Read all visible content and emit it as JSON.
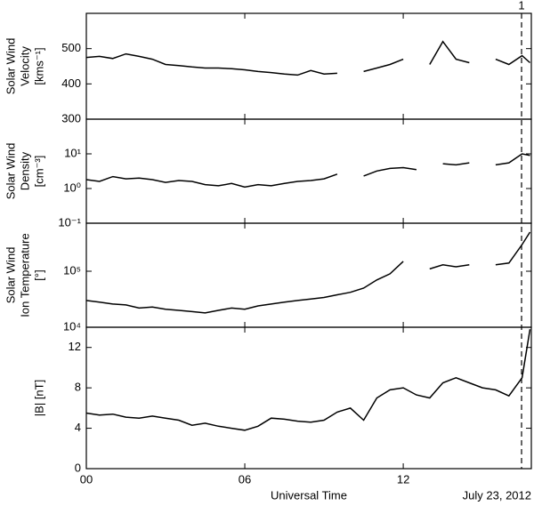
{
  "chart_data": [
    {
      "type": "line",
      "ylabel": [
        "Solar Wind",
        "Velocity",
        "[kms⁻¹]"
      ],
      "log_y": false,
      "xlim": [
        0,
        16.85
      ],
      "ylim": [
        300,
        600
      ],
      "yticks": [
        300,
        400,
        500
      ],
      "event_line": {
        "x": 16.48,
        "label": "1"
      },
      "x": [
        0,
        0.5,
        1,
        1.5,
        2,
        2.5,
        3,
        3.5,
        4,
        4.5,
        5,
        5.5,
        6,
        6.5,
        7,
        7.5,
        8,
        8.5,
        9,
        9.5,
        10,
        10.5,
        11,
        11.5,
        12,
        12.5,
        13,
        13.5,
        14,
        14.5,
        15,
        15.5,
        16,
        16.5,
        16.8
      ],
      "series": [
        {
          "color": "#000000",
          "values": [
            475,
            478,
            472,
            485,
            478,
            470,
            455,
            452,
            448,
            445,
            445,
            443,
            440,
            435,
            432,
            428,
            425,
            438,
            428,
            430,
            null,
            435,
            445,
            455,
            470,
            null,
            455,
            520,
            470,
            460,
            null,
            470,
            455,
            480,
            460
          ]
        }
      ]
    },
    {
      "type": "line",
      "ylabel": [
        "Solar Wind",
        "Density",
        "[cm⁻³]"
      ],
      "log_y": true,
      "xlim": [
        0,
        16.85
      ],
      "ylim": [
        0.1,
        100
      ],
      "yticks": [
        {
          "value": 0.1,
          "label": "10⁻¹"
        },
        {
          "value": 1,
          "label": "10⁰"
        },
        {
          "value": 10,
          "label": "10¹"
        }
      ],
      "x": [
        0,
        0.5,
        1,
        1.5,
        2,
        2.5,
        3,
        3.5,
        4,
        4.5,
        5,
        5.5,
        6,
        6.5,
        7,
        7.5,
        8,
        8.5,
        9,
        9.5,
        10,
        10.5,
        11,
        11.5,
        12,
        12.5,
        13,
        13.5,
        14,
        14.5,
        15,
        15.5,
        16,
        16.5,
        16.8
      ],
      "series": [
        {
          "color": "#000000",
          "values": [
            1.8,
            1.6,
            2.2,
            1.9,
            2.0,
            1.8,
            1.5,
            1.7,
            1.6,
            1.3,
            1.2,
            1.4,
            1.1,
            1.3,
            1.2,
            1.4,
            1.6,
            1.7,
            1.9,
            2.6,
            null,
            2.3,
            3.2,
            3.8,
            4.0,
            3.5,
            null,
            5.2,
            4.8,
            5.5,
            null,
            4.8,
            5.5,
            10,
            9
          ]
        }
      ]
    },
    {
      "type": "line",
      "ylabel": [
        "Solar Wind",
        "Ion Temperature",
        "[°]"
      ],
      "log_y": true,
      "xlim": [
        0,
        16.85
      ],
      "ylim": [
        10000,
        720000
      ],
      "yticks": [
        {
          "value": 10000,
          "label": "10⁴"
        },
        {
          "value": 100000,
          "label": "10⁵"
        }
      ],
      "x": [
        0,
        0.5,
        1,
        1.5,
        2,
        2.5,
        3,
        3.5,
        4,
        4.5,
        5,
        5.5,
        6,
        6.5,
        7,
        7.5,
        8,
        8.5,
        9,
        9.5,
        10,
        10.5,
        11,
        11.5,
        12,
        12.5,
        13,
        13.5,
        14,
        14.5,
        15,
        15.5,
        16,
        16.5,
        16.8
      ],
      "series": [
        {
          "color": "#000000",
          "values": [
            30000,
            28000,
            26000,
            25000,
            22000,
            23000,
            21000,
            20000,
            19000,
            18000,
            20000,
            22000,
            21000,
            24000,
            26000,
            28000,
            30000,
            32000,
            34000,
            38000,
            42000,
            50000,
            70000,
            90000,
            150000,
            null,
            110000,
            130000,
            120000,
            130000,
            null,
            130000,
            140000,
            300000,
            500000
          ]
        }
      ]
    },
    {
      "type": "line",
      "ylabel": [
        "|B| [nT]"
      ],
      "log_y": false,
      "xlim": [
        0,
        16.85
      ],
      "ylim": [
        0,
        14
      ],
      "yticks": [
        0,
        4,
        8,
        12
      ],
      "xticks": [
        {
          "value": 0,
          "label": "00"
        },
        {
          "value": 6,
          "label": "06"
        },
        {
          "value": 12,
          "label": "12"
        }
      ],
      "xlabel": "Universal Time",
      "annotation": "July 23, 2012",
      "x": [
        0,
        0.5,
        1,
        1.5,
        2,
        2.5,
        3,
        3.5,
        4,
        4.5,
        5,
        5.5,
        6,
        6.5,
        7,
        7.5,
        8,
        8.5,
        9,
        9.5,
        10,
        10.5,
        11,
        11.5,
        12,
        12.5,
        13,
        13.5,
        14,
        14.5,
        15,
        15.5,
        16,
        16.5,
        16.8
      ],
      "series": [
        {
          "color": "#000000",
          "values": [
            5.5,
            5.3,
            5.4,
            5.1,
            5.0,
            5.2,
            5.0,
            4.8,
            4.3,
            4.5,
            4.2,
            4.0,
            3.8,
            4.2,
            5.0,
            4.9,
            4.7,
            4.6,
            4.8,
            5.6,
            6.0,
            4.8,
            7.0,
            7.8,
            8.0,
            7.3,
            7.0,
            8.5,
            9.0,
            8.5,
            8.0,
            7.8,
            7.2,
            9.0,
            13.8
          ]
        }
      ]
    }
  ]
}
